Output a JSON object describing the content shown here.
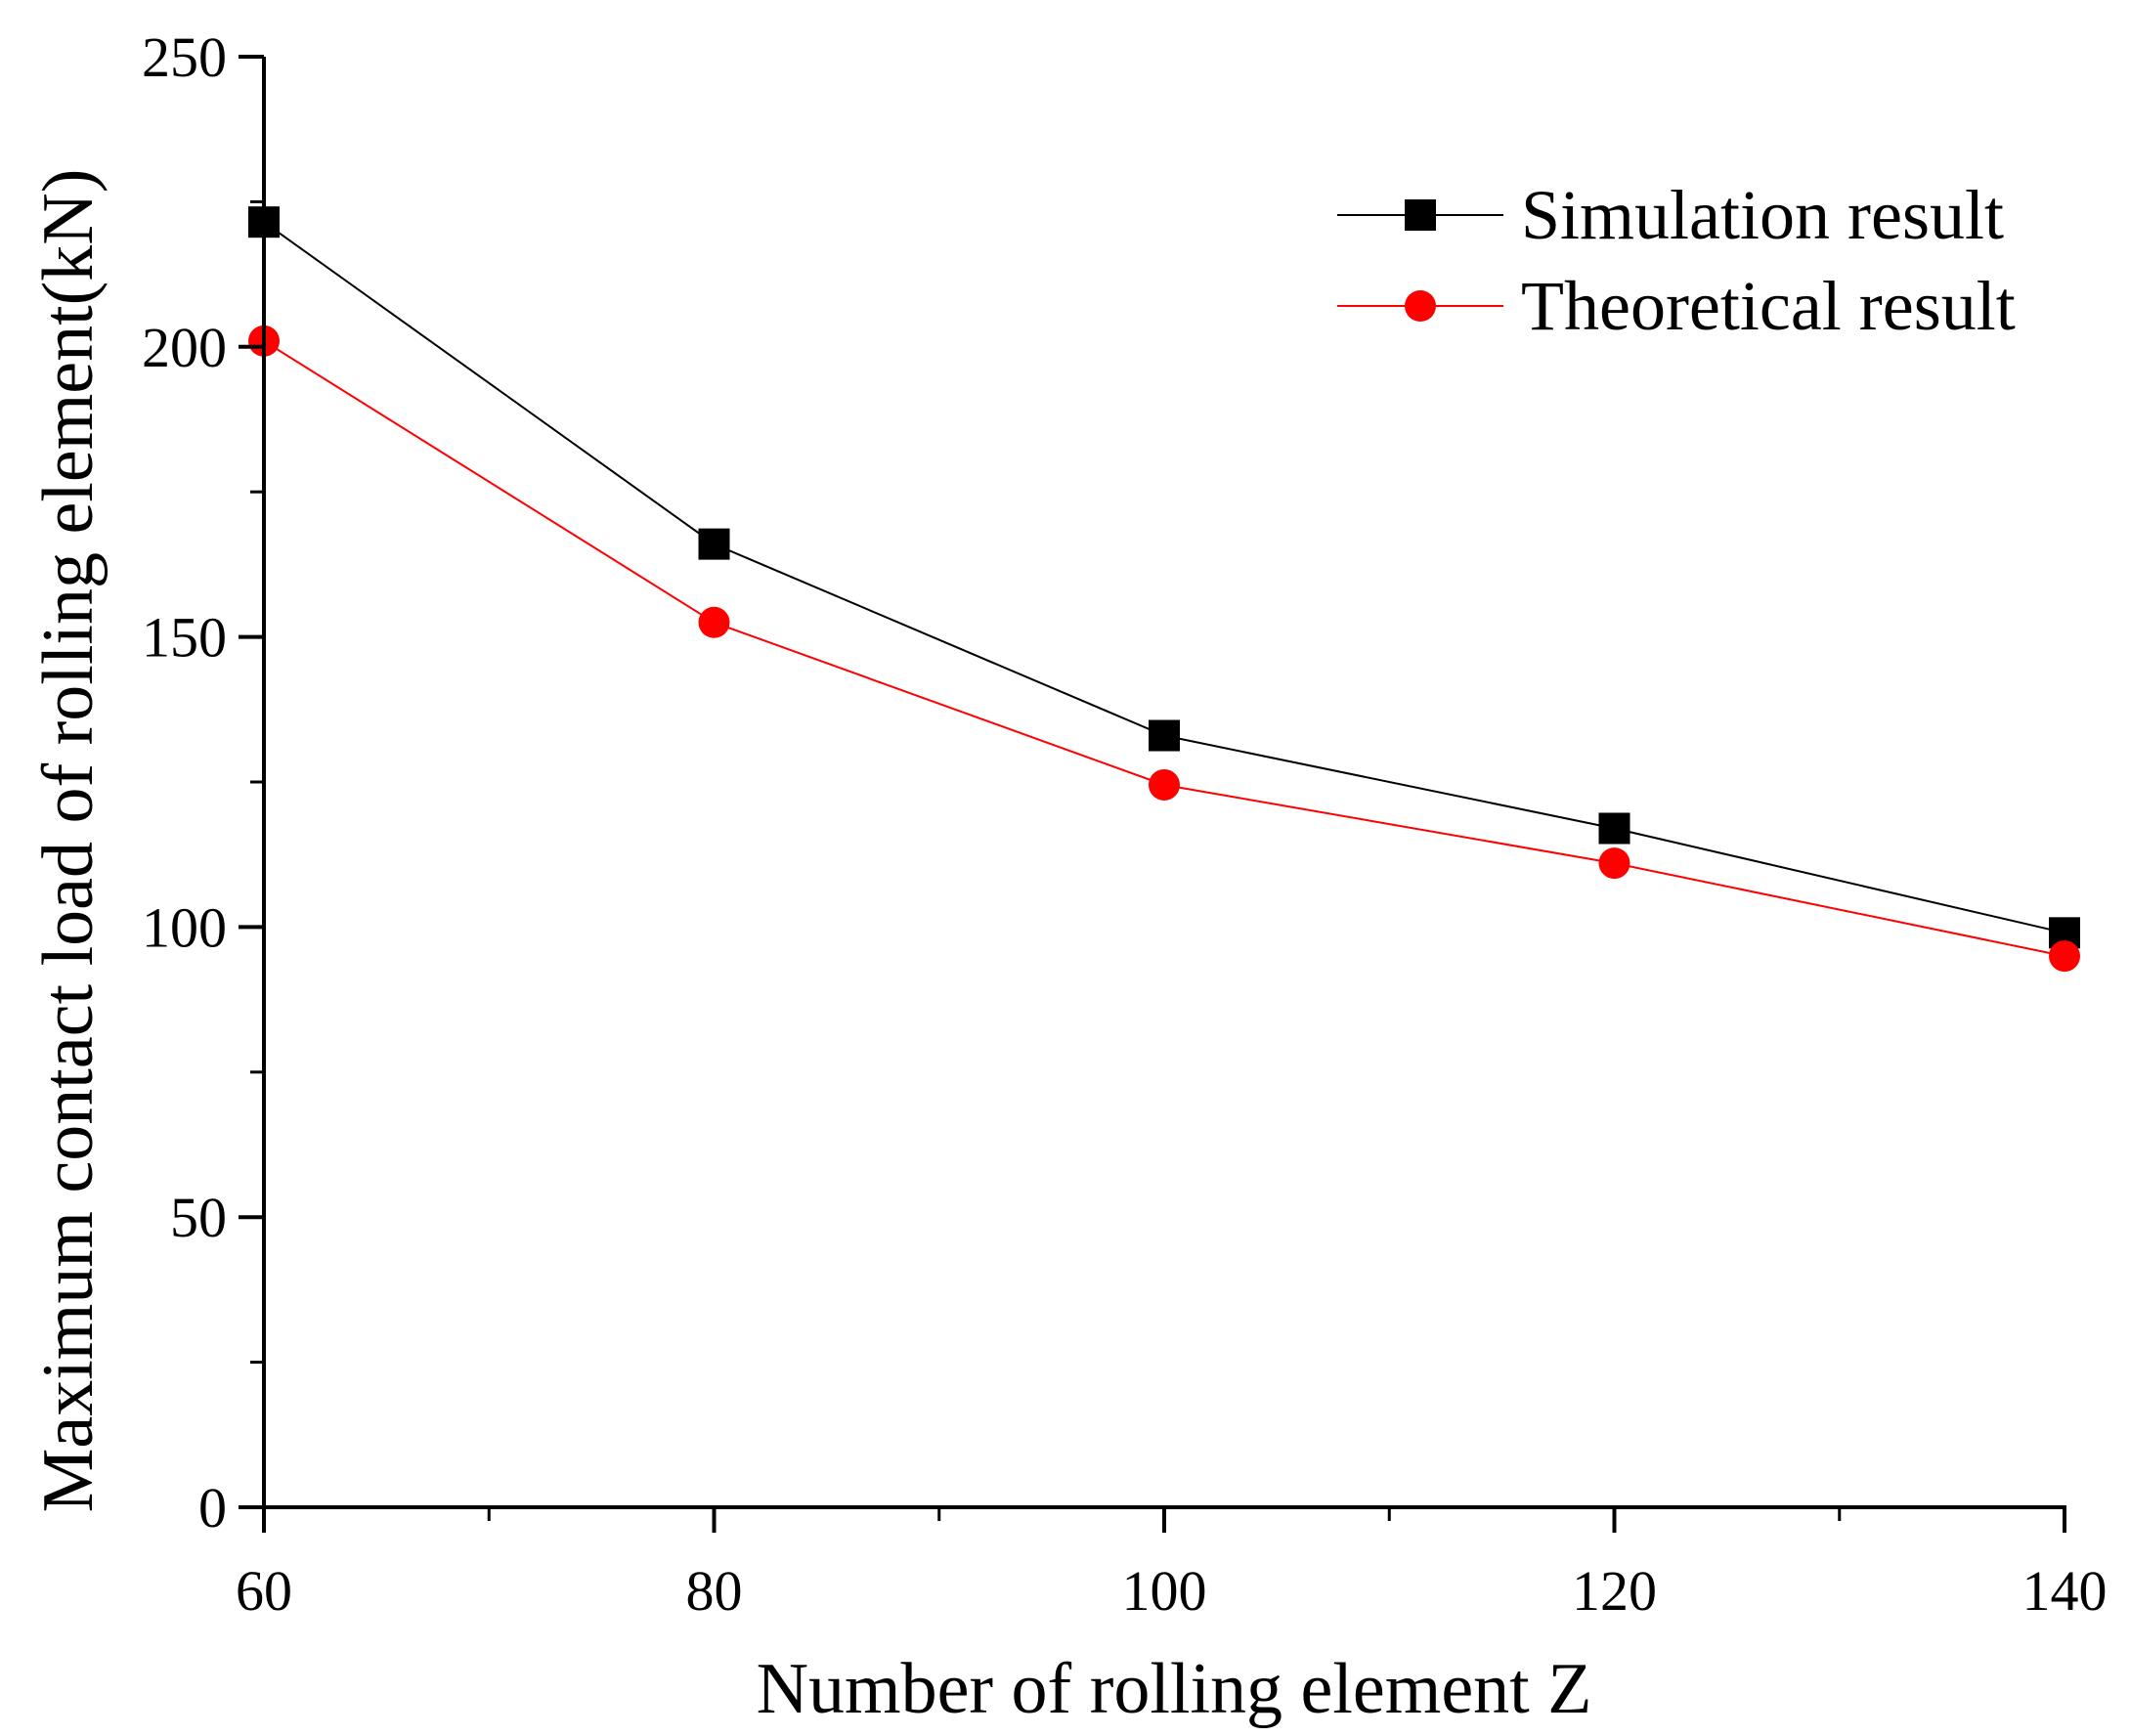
{
  "chart_data": {
    "type": "line",
    "xlabel": "Number of rolling element Z",
    "ylabel": "Maximum contact load of rolling element(kN)",
    "xlim": [
      60,
      140
    ],
    "ylim": [
      0,
      250
    ],
    "x_ticks": [
      60,
      80,
      100,
      120,
      140
    ],
    "x_tick_labels": [
      "60",
      "80",
      "100",
      "120",
      "140"
    ],
    "x_minor_ticks": [
      70,
      90,
      110,
      130
    ],
    "y_ticks": [
      0,
      50,
      100,
      150,
      200,
      250
    ],
    "y_tick_labels": [
      "0",
      "50",
      "100",
      "150",
      "200",
      "250"
    ],
    "y_minor_ticks": [
      25,
      75,
      125,
      175,
      225
    ],
    "grid": false,
    "legend_position": "top-right",
    "x": [
      60,
      80,
      100,
      120,
      140
    ],
    "series": [
      {
        "name": "Simulation result",
        "values": [
          221.5,
          166,
          133,
          117,
          99
        ],
        "color": "#000000",
        "marker": "square"
      },
      {
        "name": "Theoretical result",
        "values": [
          201,
          152.5,
          124.5,
          111,
          95
        ],
        "color": "#ff0000",
        "marker": "circle"
      }
    ]
  }
}
